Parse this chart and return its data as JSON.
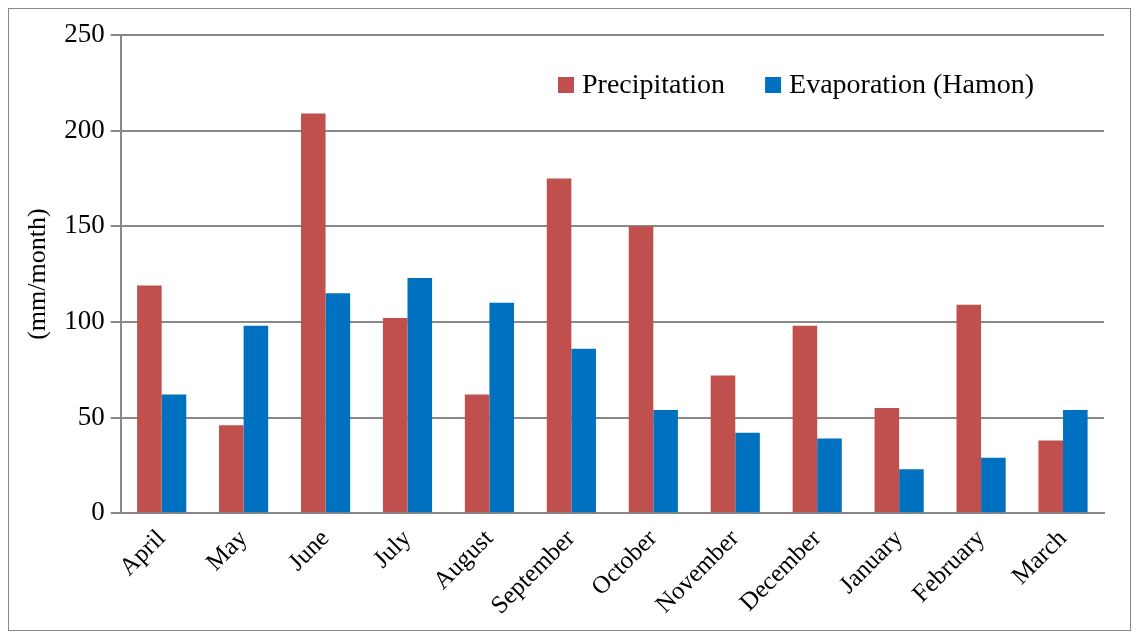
{
  "chart_data": {
    "type": "bar",
    "ylabel": "(mm/month)",
    "categories": [
      "April",
      "May",
      "June",
      "July",
      "August",
      "September",
      "October",
      "November",
      "December",
      "January",
      "February",
      "March"
    ],
    "series": [
      {
        "name": "Precipitation",
        "color": "#c0504d",
        "values": [
          119,
          46,
          209,
          102,
          62,
          175,
          150,
          72,
          98,
          55,
          109,
          38
        ]
      },
      {
        "name": "Evaporation (Hamon)",
        "color": "#0070c0",
        "values": [
          62,
          98,
          115,
          123,
          110,
          86,
          54,
          42,
          39,
          23,
          29,
          54
        ]
      }
    ],
    "ylim": [
      0,
      250
    ],
    "yticks": [
      0,
      50,
      100,
      150,
      200,
      250
    ],
    "grid": "y",
    "legend": "top right"
  }
}
